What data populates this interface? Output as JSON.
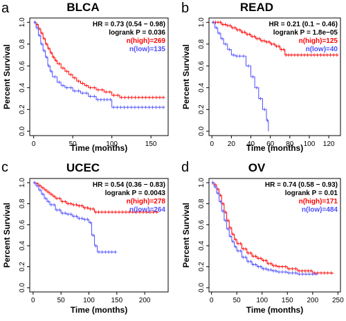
{
  "colors": {
    "high": "#ff0000",
    "low": "#4d4dff",
    "text": "#000000"
  },
  "chart_data": [
    {
      "type": "line",
      "panel": "a",
      "title": "BLCA",
      "xlabel": "Time (months)",
      "ylabel": "Percent Survival",
      "xlim": [
        -5,
        172
      ],
      "ylim": [
        -0.04,
        1.04
      ],
      "xticks": [
        0,
        50,
        100,
        150
      ],
      "yticks": [
        0.0,
        0.2,
        0.4,
        0.6,
        0.8,
        1.0
      ],
      "xtick_labels": [
        "0",
        "50",
        "100",
        "150"
      ],
      "ytick_labels": [
        "0.0",
        "0.2",
        "0.4",
        "0.6",
        "0.8",
        "1.0"
      ],
      "annotations": [
        "HR = 0.73 (0.54 − 0.98)",
        "logrank P = 0.036",
        "n(high)=269",
        "n(low)=135"
      ],
      "series": [
        {
          "name": "n(high)=269",
          "color": "#ff0000",
          "x": [
            0,
            3,
            6,
            9,
            12,
            15,
            18,
            21,
            24,
            27,
            30,
            35,
            40,
            45,
            50,
            55,
            60,
            65,
            70,
            80,
            90,
            100,
            110,
            168
          ],
          "y": [
            1.0,
            0.98,
            0.94,
            0.9,
            0.85,
            0.8,
            0.76,
            0.72,
            0.68,
            0.65,
            0.62,
            0.58,
            0.55,
            0.52,
            0.49,
            0.46,
            0.44,
            0.42,
            0.4,
            0.38,
            0.36,
            0.33,
            0.31,
            0.31
          ]
        },
        {
          "name": "n(low)=135",
          "color": "#4d4dff",
          "x": [
            0,
            3,
            6,
            9,
            12,
            15,
            18,
            21,
            24,
            30,
            35,
            40,
            50,
            60,
            70,
            80,
            100,
            168
          ],
          "y": [
            1.0,
            0.95,
            0.88,
            0.8,
            0.74,
            0.68,
            0.6,
            0.55,
            0.5,
            0.45,
            0.42,
            0.4,
            0.37,
            0.35,
            0.32,
            0.29,
            0.22,
            0.22
          ]
        }
      ]
    },
    {
      "type": "line",
      "panel": "b",
      "title": "READ",
      "xlabel": "Time (months)",
      "ylabel": "Percent Survival",
      "xlim": [
        -3,
        132
      ],
      "ylim": [
        -0.04,
        1.04
      ],
      "xticks": [
        0,
        20,
        40,
        60,
        80,
        100,
        120
      ],
      "yticks": [
        0.0,
        0.2,
        0.4,
        0.6,
        0.8,
        1.0
      ],
      "xtick_labels": [
        "0",
        "20",
        "40",
        "60",
        "80",
        "100",
        "120"
      ],
      "ytick_labels": [
        "0.0",
        "0.2",
        "0.4",
        "0.6",
        "0.8",
        "1.0"
      ],
      "annotations": [
        "HR = 0.21 (0.1 − 0.46)",
        "logrank P = 1.8e−05",
        "n(high)=125",
        "n(low)=40"
      ],
      "series": [
        {
          "name": "n(high)=125",
          "color": "#ff0000",
          "x": [
            0,
            5,
            10,
            15,
            20,
            25,
            30,
            35,
            40,
            45,
            50,
            55,
            60,
            65,
            70,
            75,
            80,
            130
          ],
          "y": [
            1.0,
            1.0,
            0.98,
            0.97,
            0.95,
            0.93,
            0.91,
            0.89,
            0.87,
            0.85,
            0.83,
            0.82,
            0.8,
            0.78,
            0.75,
            0.7,
            0.7,
            0.7
          ]
        },
        {
          "name": "n(low)=40",
          "color": "#4d4dff",
          "x": [
            0,
            3,
            6,
            9,
            12,
            16,
            20,
            24,
            30,
            35,
            40,
            44,
            48,
            52,
            56,
            58
          ],
          "y": [
            1.0,
            0.95,
            0.9,
            0.85,
            0.8,
            0.75,
            0.7,
            0.69,
            0.69,
            0.6,
            0.5,
            0.4,
            0.3,
            0.2,
            0.1,
            0.0
          ]
        }
      ]
    },
    {
      "type": "line",
      "panel": "c",
      "title": "UCEC",
      "xlabel": "Time (months)",
      "ylabel": "Percent Survival",
      "xlim": [
        -6,
        242
      ],
      "ylim": [
        -0.04,
        1.04
      ],
      "xticks": [
        0,
        50,
        100,
        150,
        200
      ],
      "yticks": [
        0.0,
        0.2,
        0.4,
        0.6,
        0.8,
        1.0
      ],
      "xtick_labels": [
        "0",
        "50",
        "100",
        "150",
        "200"
      ],
      "ytick_labels": [
        "0.0",
        "0.2",
        "0.4",
        "0.6",
        "0.8",
        "1.0"
      ],
      "annotations": [
        "HR = 0.54 (0.36 − 0.83)",
        "logrank P = 0.0043",
        "n(high)=278",
        "n(low)=264"
      ],
      "series": [
        {
          "name": "n(high)=278",
          "color": "#ff0000",
          "x": [
            0,
            5,
            10,
            15,
            20,
            25,
            30,
            35,
            40,
            50,
            60,
            70,
            80,
            90,
            100,
            110,
            120,
            225
          ],
          "y": [
            1.0,
            0.99,
            0.97,
            0.95,
            0.93,
            0.91,
            0.89,
            0.87,
            0.85,
            0.82,
            0.8,
            0.79,
            0.78,
            0.76,
            0.75,
            0.72,
            0.72,
            0.72
          ]
        },
        {
          "name": "n(low)=264",
          "color": "#4d4dff",
          "x": [
            0,
            5,
            10,
            15,
            20,
            25,
            30,
            40,
            50,
            60,
            70,
            80,
            90,
            100,
            105,
            110,
            115,
            150
          ],
          "y": [
            1.0,
            0.97,
            0.93,
            0.89,
            0.85,
            0.82,
            0.79,
            0.74,
            0.71,
            0.7,
            0.68,
            0.66,
            0.65,
            0.62,
            0.5,
            0.4,
            0.34,
            0.34
          ]
        }
      ]
    },
    {
      "type": "line",
      "panel": "d",
      "title": "OV",
      "xlabel": "Time (months)",
      "ylabel": "Percent Survival",
      "xlim": [
        -5,
        255
      ],
      "ylim": [
        -0.04,
        1.04
      ],
      "xticks": [
        0,
        50,
        100,
        150,
        200,
        250
      ],
      "yticks": [
        0.0,
        0.2,
        0.4,
        0.6,
        0.8,
        1.0
      ],
      "xtick_labels": [
        "0",
        "50",
        "100",
        "150",
        "200",
        "250"
      ],
      "ytick_labels": [
        "0.0",
        "0.2",
        "0.4",
        "0.6",
        "0.8",
        "1.0"
      ],
      "annotations": [
        "HR = 0.74 (0.58 − 0.93)",
        "logrank P = 0.01",
        "n(high)=171",
        "n(low)=484"
      ],
      "series": [
        {
          "name": "n(high)=171",
          "color": "#ff0000",
          "x": [
            0,
            5,
            10,
            15,
            20,
            25,
            30,
            35,
            40,
            45,
            50,
            60,
            70,
            80,
            90,
            100,
            110,
            120,
            130,
            150,
            170,
            200,
            240
          ],
          "y": [
            1.0,
            0.98,
            0.94,
            0.88,
            0.8,
            0.72,
            0.64,
            0.57,
            0.51,
            0.46,
            0.42,
            0.37,
            0.33,
            0.3,
            0.28,
            0.26,
            0.23,
            0.21,
            0.2,
            0.18,
            0.16,
            0.14,
            0.13
          ]
        },
        {
          "name": "n(low)=484",
          "color": "#4d4dff",
          "x": [
            0,
            5,
            10,
            15,
            20,
            25,
            30,
            35,
            40,
            45,
            50,
            60,
            70,
            80,
            90,
            100,
            110,
            120,
            130,
            150,
            170,
            190,
            210
          ],
          "y": [
            1.0,
            0.96,
            0.9,
            0.82,
            0.73,
            0.64,
            0.56,
            0.49,
            0.44,
            0.39,
            0.35,
            0.29,
            0.25,
            0.22,
            0.2,
            0.18,
            0.17,
            0.16,
            0.15,
            0.14,
            0.13,
            0.13,
            0.13
          ]
        }
      ]
    }
  ]
}
